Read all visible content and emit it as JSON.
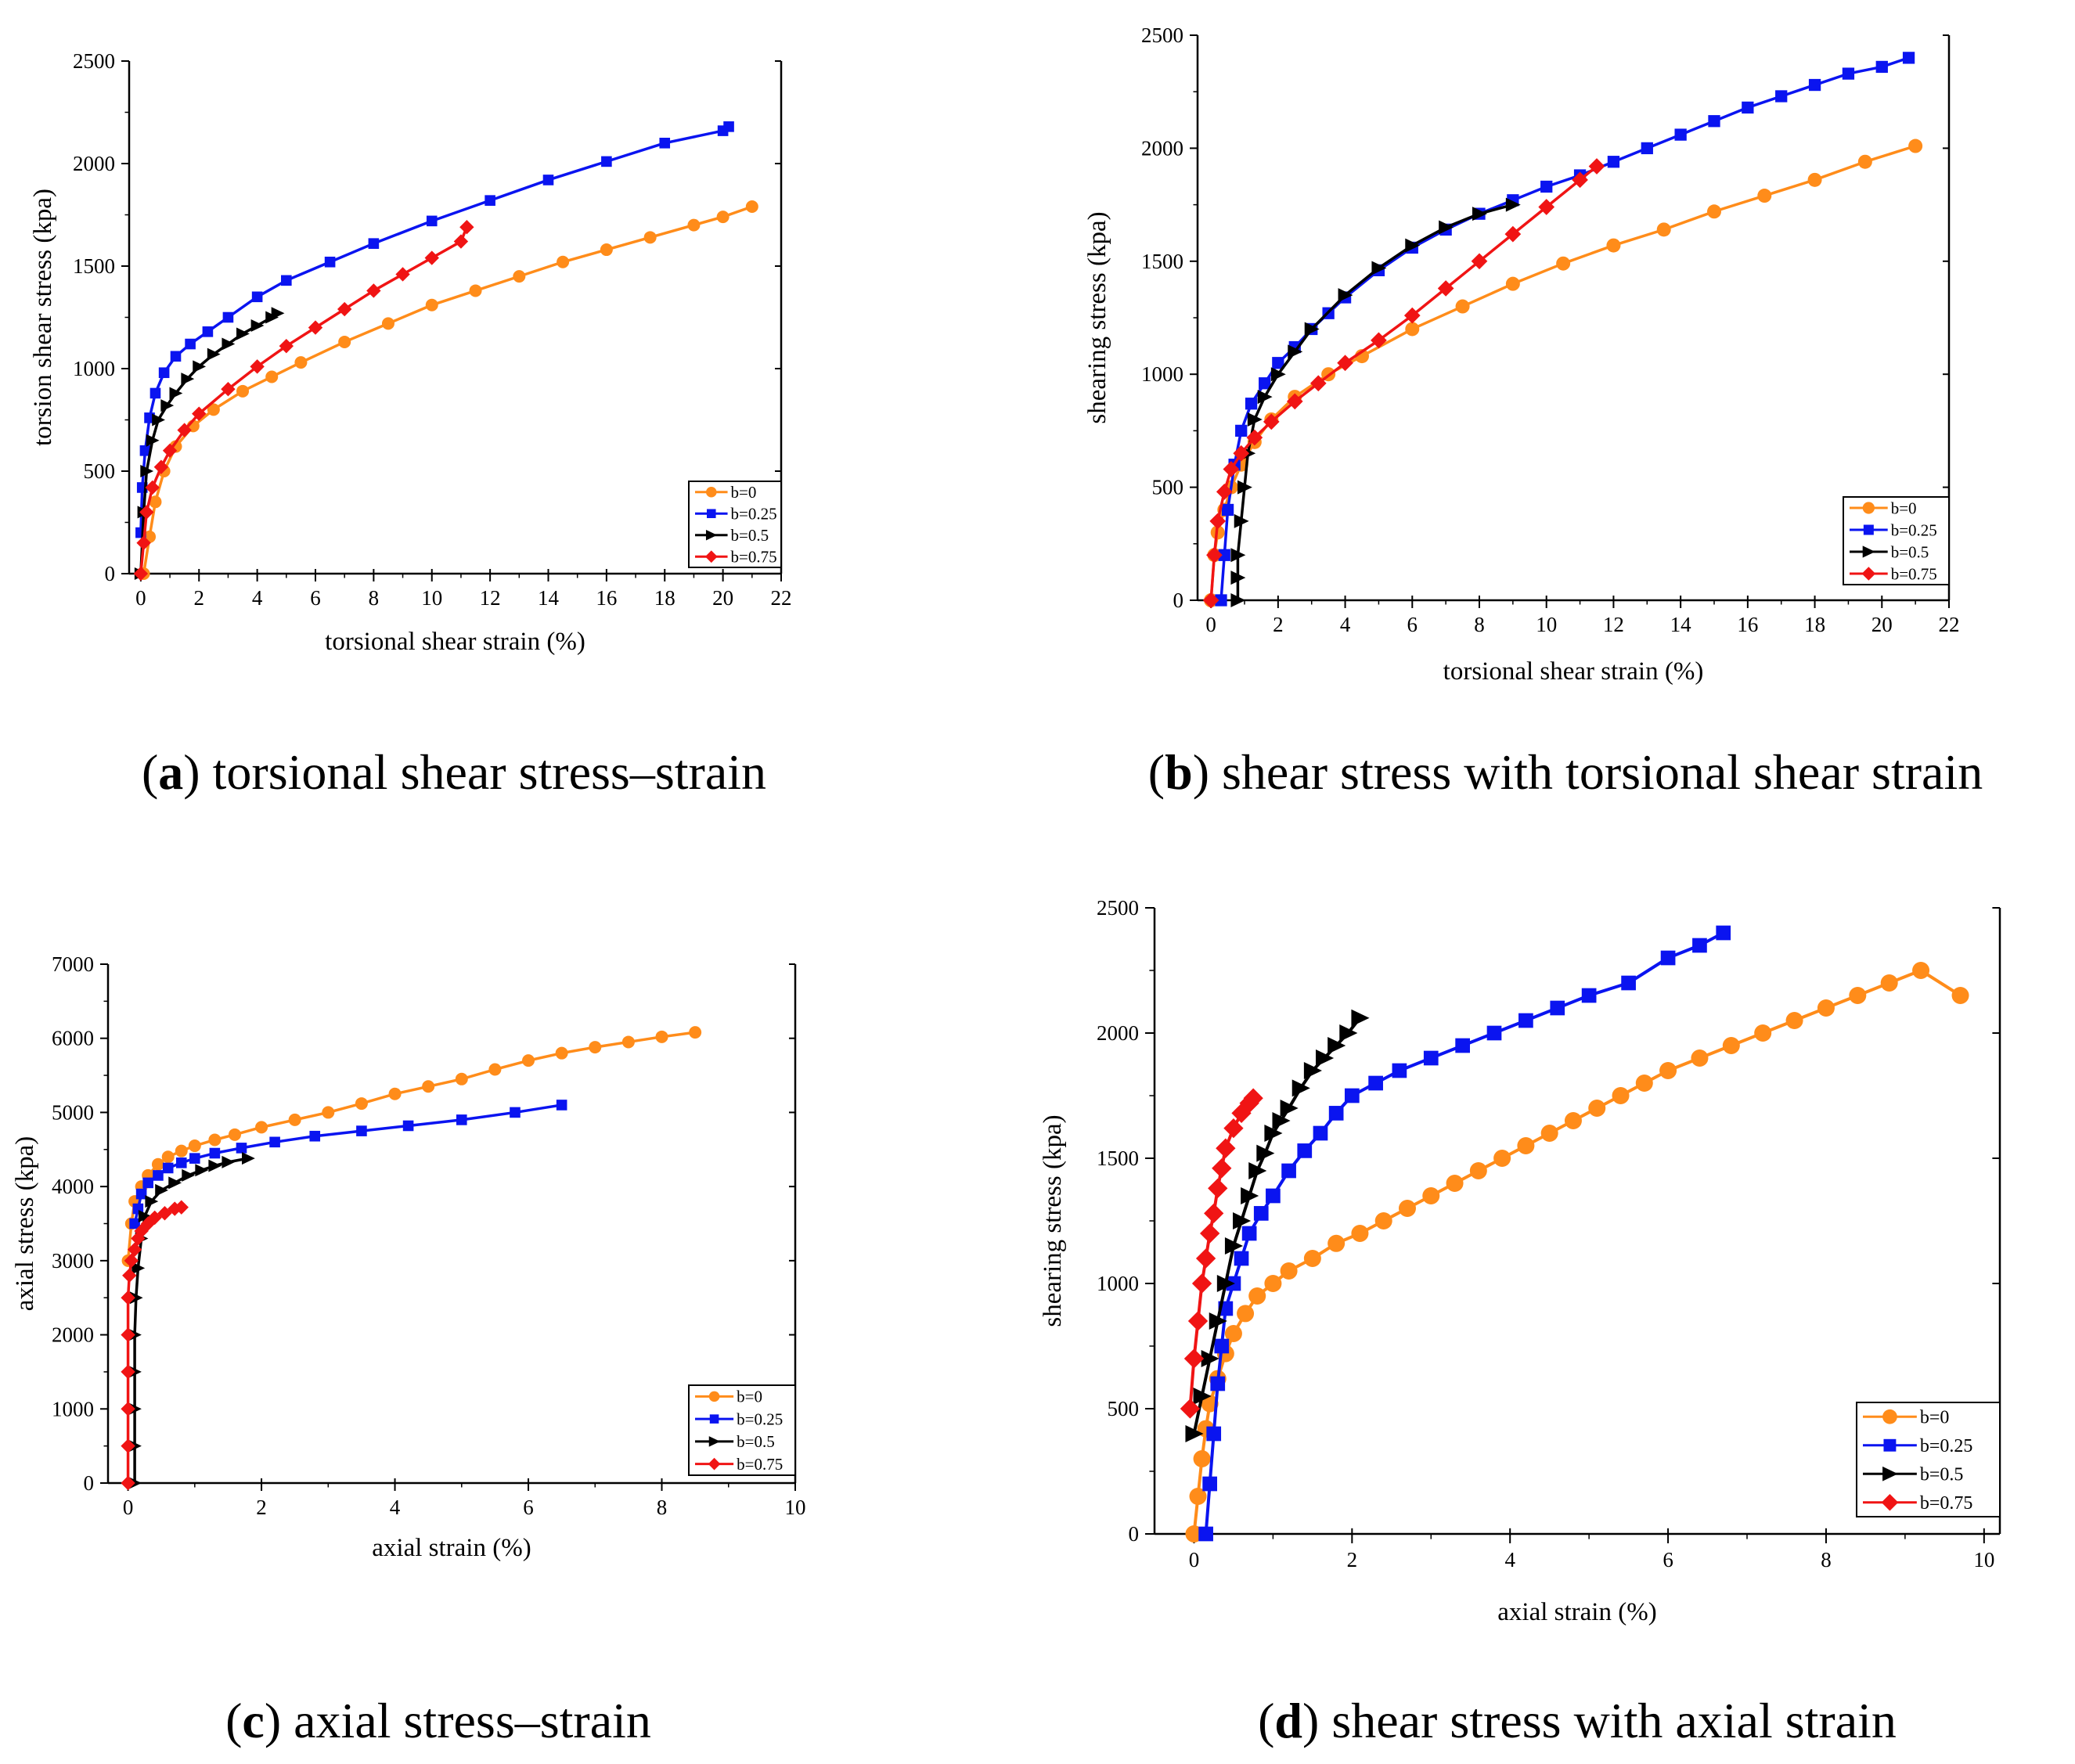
{
  "figure": {
    "series_styles": [
      {
        "name": "b=0",
        "color": "#FF8C1A",
        "marker": "circle"
      },
      {
        "name": "b=0.25",
        "color": "#0A14F0",
        "marker": "square"
      },
      {
        "name": "b=0.5",
        "color": "#000000",
        "marker": "triangle"
      },
      {
        "name": "b=0.75",
        "color": "#F01414",
        "marker": "diamond"
      }
    ]
  },
  "chart_data": [
    {
      "id": "a",
      "type": "line",
      "caption_letter": "a",
      "caption_text": " torsional shear stress–strain",
      "xlabel": "torsional shear strain (%)",
      "ylabel": "torsion shear stress (kpa)",
      "xlim": [
        -0.4,
        22
      ],
      "ylim": [
        0,
        2500
      ],
      "xticks": [
        0,
        2,
        4,
        6,
        8,
        10,
        12,
        14,
        16,
        18,
        20,
        22
      ],
      "yticks": [
        0,
        500,
        1000,
        1500,
        2000,
        2500
      ],
      "legend_position": "bottom-right",
      "series": [
        {
          "name": "b=0",
          "x": [
            0.1,
            0.3,
            0.5,
            0.8,
            1.2,
            1.8,
            2.5,
            3.5,
            4.5,
            5.5,
            7,
            8.5,
            10,
            11.5,
            13,
            14.5,
            16,
            17.5,
            19,
            20,
            21
          ],
          "y": [
            0,
            180,
            350,
            500,
            620,
            720,
            800,
            890,
            960,
            1030,
            1130,
            1220,
            1310,
            1380,
            1450,
            1520,
            1580,
            1640,
            1700,
            1740,
            1790
          ]
        },
        {
          "name": "b=0.25",
          "x": [
            0,
            0.05,
            0.15,
            0.3,
            0.5,
            0.8,
            1.2,
            1.7,
            2.3,
            3,
            4,
            5,
            6.5,
            8,
            10,
            12,
            14,
            16,
            18,
            20,
            20.2
          ],
          "y": [
            200,
            420,
            600,
            760,
            880,
            980,
            1060,
            1120,
            1180,
            1250,
            1350,
            1430,
            1520,
            1610,
            1720,
            1820,
            1920,
            2010,
            2100,
            2160,
            2180
          ]
        },
        {
          "name": "b=0.5",
          "x": [
            0,
            0.1,
            0.2,
            0.4,
            0.6,
            0.9,
            1.2,
            1.6,
            2,
            2.5,
            3,
            3.5,
            4,
            4.5,
            4.7
          ],
          "y": [
            0,
            300,
            500,
            650,
            750,
            820,
            880,
            950,
            1010,
            1070,
            1120,
            1170,
            1210,
            1250,
            1270
          ]
        },
        {
          "name": "b=0.75",
          "x": [
            0,
            0.1,
            0.2,
            0.4,
            0.7,
            1,
            1.5,
            2,
            3,
            4,
            5,
            6,
            7,
            8,
            9,
            10,
            11,
            11.2
          ],
          "y": [
            0,
            150,
            300,
            420,
            520,
            600,
            700,
            780,
            900,
            1010,
            1110,
            1200,
            1290,
            1380,
            1460,
            1540,
            1620,
            1690
          ]
        }
      ]
    },
    {
      "id": "b",
      "type": "line",
      "caption_letter": "b",
      "caption_text": " shear stress with torsional shear strain",
      "xlabel": "torsional shear strain (%)",
      "ylabel": "shearing stress (kpa)",
      "xlim": [
        -0.4,
        22
      ],
      "ylim": [
        0,
        2500
      ],
      "xticks": [
        0,
        2,
        4,
        6,
        8,
        10,
        12,
        14,
        16,
        18,
        20,
        22
      ],
      "yticks": [
        0,
        500,
        1000,
        1500,
        2000,
        2500
      ],
      "legend_position": "bottom-right",
      "series": [
        {
          "name": "b=0",
          "x": [
            0,
            0.1,
            0.2,
            0.4,
            0.6,
            0.9,
            1.3,
            1.8,
            2.5,
            3.5,
            4.5,
            6,
            7.5,
            9,
            10.5,
            12,
            13.5,
            15,
            16.5,
            18,
            19.5,
            21
          ],
          "y": [
            0,
            200,
            300,
            400,
            500,
            600,
            700,
            800,
            900,
            1000,
            1080,
            1200,
            1300,
            1400,
            1490,
            1570,
            1640,
            1720,
            1790,
            1860,
            1940,
            2010
          ]
        },
        {
          "name": "b=0.25",
          "x": [
            0.3,
            0.4,
            0.5,
            0.7,
            0.9,
            1.2,
            1.6,
            2,
            2.5,
            3,
            3.5,
            4,
            5,
            6,
            7,
            8,
            9,
            10,
            11,
            12,
            13,
            14,
            15,
            16,
            17,
            18,
            19,
            20,
            20.8
          ],
          "y": [
            0,
            200,
            400,
            600,
            750,
            870,
            960,
            1050,
            1120,
            1200,
            1270,
            1340,
            1460,
            1560,
            1640,
            1710,
            1770,
            1830,
            1880,
            1940,
            2000,
            2060,
            2120,
            2180,
            2230,
            2280,
            2330,
            2360,
            2400
          ]
        },
        {
          "name": "b=0.5",
          "x": [
            0.8,
            0.8,
            0.8,
            0.9,
            1,
            1.1,
            1.3,
            1.6,
            2,
            2.5,
            3,
            4,
            5,
            6,
            7,
            8,
            9
          ],
          "y": [
            0,
            100,
            200,
            350,
            500,
            650,
            800,
            900,
            1000,
            1100,
            1200,
            1350,
            1470,
            1570,
            1650,
            1710,
            1750
          ]
        },
        {
          "name": "b=0.75",
          "x": [
            0,
            0.1,
            0.2,
            0.4,
            0.6,
            0.9,
            1.3,
            1.8,
            2.5,
            3.2,
            4,
            5,
            6,
            7,
            8,
            9,
            10,
            11,
            11.5
          ],
          "y": [
            0,
            200,
            350,
            480,
            580,
            650,
            720,
            790,
            880,
            960,
            1050,
            1150,
            1260,
            1380,
            1500,
            1620,
            1740,
            1860,
            1920
          ]
        }
      ]
    },
    {
      "id": "c",
      "type": "line",
      "caption_letter": "c",
      "caption_text": " axial stress–strain",
      "xlabel": "axial strain (%)",
      "ylabel": "axial stress (kpa)",
      "xlim": [
        -0.3,
        10
      ],
      "ylim": [
        0,
        7000
      ],
      "xticks": [
        0,
        2,
        4,
        6,
        8,
        10
      ],
      "yticks": [
        0,
        1000,
        2000,
        3000,
        4000,
        5000,
        6000,
        7000
      ],
      "legend_position": "bottom-right",
      "series": [
        {
          "name": "b=0",
          "x": [
            0,
            0.05,
            0.1,
            0.2,
            0.3,
            0.45,
            0.6,
            0.8,
            1,
            1.3,
            1.6,
            2,
            2.5,
            3,
            3.5,
            4,
            4.5,
            5,
            5.5,
            6,
            6.5,
            7,
            7.5,
            8,
            8.5
          ],
          "y": [
            3000,
            3500,
            3800,
            4000,
            4150,
            4300,
            4400,
            4480,
            4550,
            4630,
            4700,
            4800,
            4900,
            5000,
            5120,
            5250,
            5350,
            5450,
            5580,
            5700,
            5800,
            5880,
            5950,
            6020,
            6080
          ]
        },
        {
          "name": "b=0.25",
          "x": [
            0.1,
            0.15,
            0.2,
            0.3,
            0.45,
            0.6,
            0.8,
            1,
            1.3,
            1.7,
            2.2,
            2.8,
            3.5,
            4.2,
            5,
            5.8,
            6.5
          ],
          "y": [
            3500,
            3700,
            3900,
            4050,
            4150,
            4250,
            4320,
            4380,
            4450,
            4520,
            4600,
            4680,
            4750,
            4820,
            4900,
            5000,
            5100
          ]
        },
        {
          "name": "b=0.5",
          "x": [
            0.1,
            0.1,
            0.1,
            0.1,
            0.1,
            0.12,
            0.15,
            0.2,
            0.25,
            0.35,
            0.5,
            0.7,
            0.9,
            1.1,
            1.3,
            1.5,
            1.8
          ],
          "y": [
            0,
            500,
            1000,
            1500,
            2000,
            2500,
            2900,
            3300,
            3600,
            3800,
            3950,
            4050,
            4150,
            4220,
            4280,
            4330,
            4380
          ]
        },
        {
          "name": "b=0.75",
          "x": [
            0,
            0,
            0,
            0,
            0,
            0,
            0.02,
            0.05,
            0.1,
            0.15,
            0.2,
            0.3,
            0.4,
            0.55,
            0.7,
            0.8
          ],
          "y": [
            0,
            500,
            1000,
            1500,
            2000,
            2500,
            2800,
            3000,
            3150,
            3300,
            3400,
            3500,
            3580,
            3640,
            3700,
            3720
          ]
        }
      ]
    },
    {
      "id": "d",
      "type": "line",
      "caption_letter": "d",
      "caption_text": " shear stress with axial strain",
      "xlabel": "axial strain (%)",
      "ylabel": "shearing stress (kpa)",
      "xlim": [
        -0.5,
        10.2
      ],
      "ylim": [
        0,
        2500
      ],
      "xticks": [
        0,
        2,
        4,
        6,
        8,
        10
      ],
      "yticks": [
        0,
        500,
        1000,
        1500,
        2000,
        2500
      ],
      "legend_position": "bottom-right",
      "series": [
        {
          "name": "b=0",
          "x": [
            0,
            0.05,
            0.1,
            0.15,
            0.2,
            0.3,
            0.4,
            0.5,
            0.65,
            0.8,
            1,
            1.2,
            1.5,
            1.8,
            2.1,
            2.4,
            2.7,
            3,
            3.3,
            3.6,
            3.9,
            4.2,
            4.5,
            4.8,
            5.1,
            5.4,
            5.7,
            6,
            6.4,
            6.8,
            7.2,
            7.6,
            8,
            8.4,
            8.8,
            9.2,
            9.7
          ],
          "y": [
            0,
            150,
            300,
            420,
            520,
            620,
            720,
            800,
            880,
            950,
            1000,
            1050,
            1100,
            1160,
            1200,
            1250,
            1300,
            1350,
            1400,
            1450,
            1500,
            1550,
            1600,
            1650,
            1700,
            1750,
            1800,
            1850,
            1900,
            1950,
            2000,
            2050,
            2100,
            2150,
            2200,
            2250,
            2150
          ]
        },
        {
          "name": "b=0.25",
          "x": [
            0.15,
            0.2,
            0.25,
            0.3,
            0.35,
            0.4,
            0.5,
            0.6,
            0.7,
            0.85,
            1,
            1.2,
            1.4,
            1.6,
            1.8,
            2,
            2.3,
            2.6,
            3,
            3.4,
            3.8,
            4.2,
            4.6,
            5,
            5.5,
            6,
            6.4,
            6.7
          ],
          "y": [
            0,
            200,
            400,
            600,
            750,
            900,
            1000,
            1100,
            1200,
            1280,
            1350,
            1450,
            1530,
            1600,
            1680,
            1750,
            1800,
            1850,
            1900,
            1950,
            2000,
            2050,
            2100,
            2150,
            2200,
            2300,
            2350,
            2400
          ]
        },
        {
          "name": "b=0.5",
          "x": [
            0,
            0.1,
            0.2,
            0.3,
            0.4,
            0.5,
            0.6,
            0.7,
            0.8,
            0.9,
            1,
            1.1,
            1.2,
            1.35,
            1.5,
            1.65,
            1.8,
            1.95,
            2.1
          ],
          "y": [
            400,
            550,
            700,
            850,
            1000,
            1150,
            1250,
            1350,
            1450,
            1520,
            1600,
            1650,
            1700,
            1780,
            1850,
            1900,
            1950,
            2000,
            2060
          ]
        },
        {
          "name": "b=0.75",
          "x": [
            -0.05,
            0,
            0.05,
            0.1,
            0.15,
            0.2,
            0.25,
            0.3,
            0.35,
            0.4,
            0.5,
            0.6,
            0.7,
            0.75
          ],
          "y": [
            500,
            700,
            850,
            1000,
            1100,
            1200,
            1280,
            1380,
            1460,
            1540,
            1620,
            1680,
            1720,
            1740
          ]
        }
      ]
    }
  ]
}
